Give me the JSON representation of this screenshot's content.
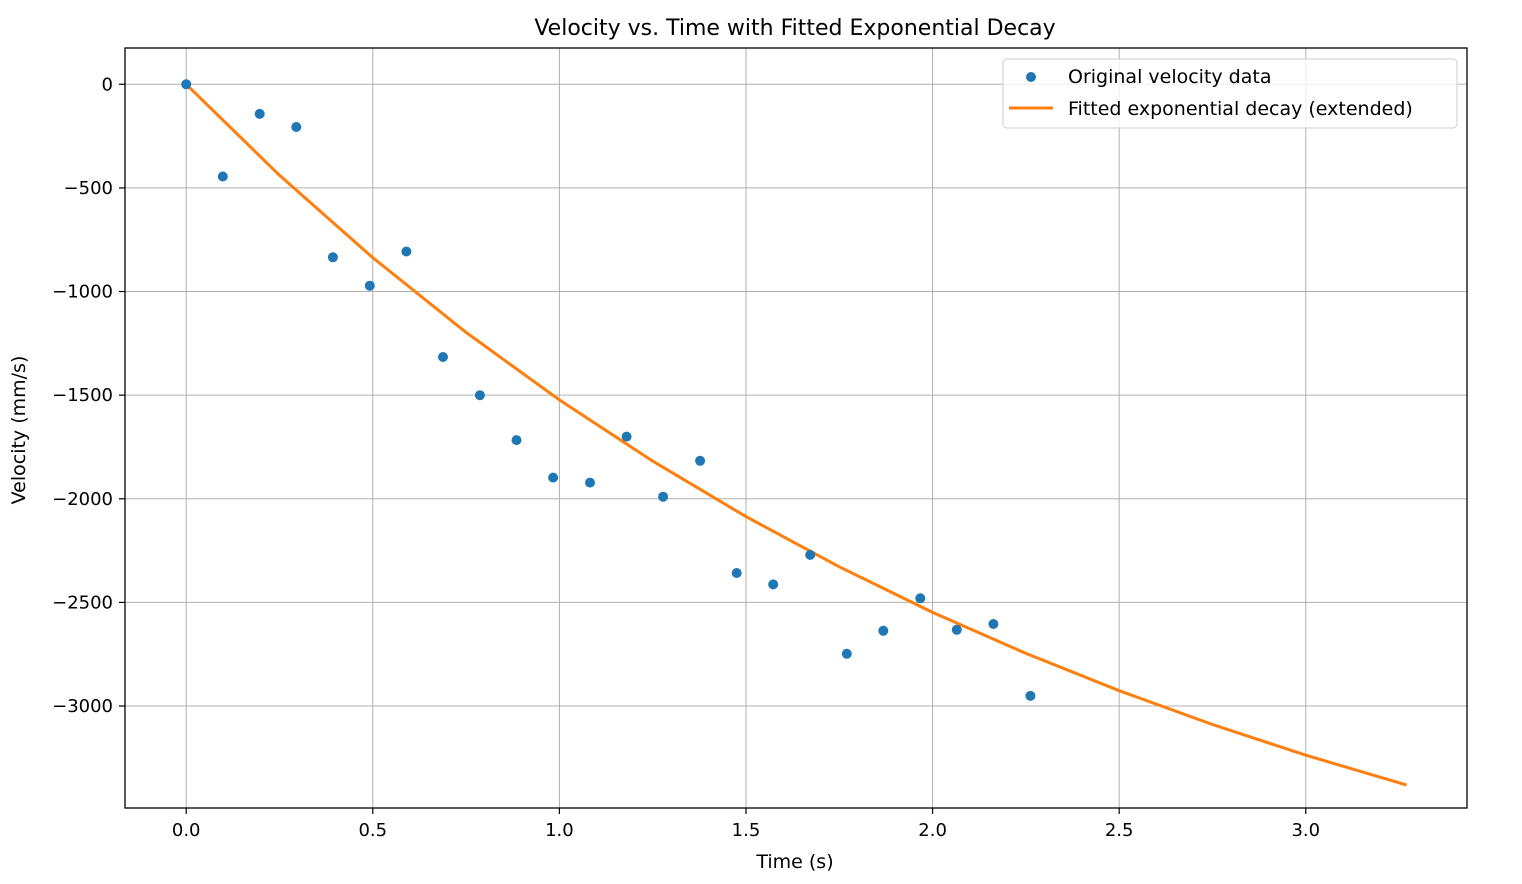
{
  "chart_data": {
    "type": "scatter",
    "title": "Velocity vs. Time with Fitted Exponential Decay",
    "xlabel": "Time (s)",
    "ylabel": "Velocity (mm/s)",
    "xlim": [
      -0.164,
      3.432
    ],
    "ylim": [
      -3492,
      175
    ],
    "xticks": [
      0.0,
      0.5,
      1.0,
      1.5,
      2.0,
      2.5,
      3.0
    ],
    "xtick_labels": [
      "0.0",
      "0.5",
      "1.0",
      "1.5",
      "2.0",
      "2.5",
      "3.0"
    ],
    "yticks": [
      0,
      -500,
      -1000,
      -1500,
      -2000,
      -2500,
      -3000
    ],
    "ytick_labels": [
      "0",
      "−500",
      "−1000",
      "−1500",
      "−2000",
      "−2500",
      "−3000"
    ],
    "grid": true,
    "legend_position": "top-right",
    "colors": {
      "points": "#1f77b4",
      "fit": "#ff7f0e"
    },
    "series": [
      {
        "name": "Original velocity data",
        "kind": "scatter",
        "x": [
          0.0,
          0.098,
          0.197,
          0.295,
          0.393,
          0.492,
          0.59,
          0.688,
          0.787,
          0.885,
          0.983,
          1.082,
          1.18,
          1.278,
          1.377,
          1.475,
          1.573,
          1.672,
          1.77,
          1.868,
          1.967,
          2.065,
          2.163,
          2.262
        ],
        "y": [
          0,
          -445,
          -143,
          -206,
          -835,
          -972,
          -807,
          -1316,
          -1500,
          -1717,
          -1898,
          -1922,
          -1700,
          -1990,
          -1817,
          -2358,
          -2413,
          -2271,
          -2748,
          -2637,
          -2480,
          -2632,
          -2604,
          -2951
        ]
      },
      {
        "name": "Fitted exponential decay (extended)",
        "kind": "line",
        "x": [
          0.0,
          0.25,
          0.5,
          0.75,
          1.0,
          1.25,
          1.5,
          1.75,
          2.0,
          2.25,
          2.5,
          2.75,
          3.0,
          3.27
        ],
        "y": [
          0,
          -439,
          -837,
          -1197,
          -1523,
          -1818,
          -2086,
          -2328,
          -2548,
          -2746,
          -2926,
          -3089,
          -3237,
          -3381
        ]
      }
    ]
  }
}
